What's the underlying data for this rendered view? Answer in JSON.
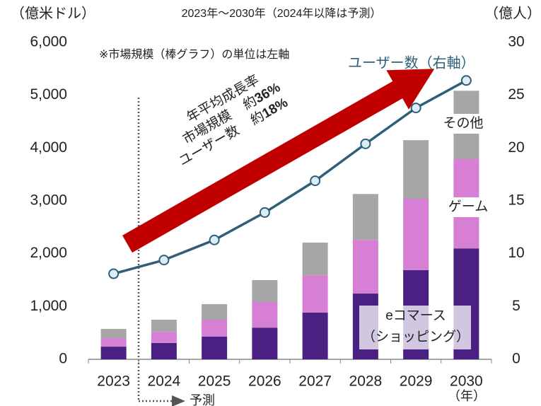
{
  "chart_data": {
    "type": "bar",
    "subtitle": "2023年～2030年（2024年以降は予測）",
    "ylabel": "（億米ドル）",
    "y2label": "（億人）",
    "note": "※市場規模（棒グラフ）の単位は左軸",
    "line_label": "ユーザー数（右軸）",
    "cagr_title": "年平均成長率",
    "cagr": [
      {
        "name": "市場規模",
        "approx": "約",
        "label": "36%"
      },
      {
        "name": "ユーザー数",
        "approx": "約",
        "label": "18%"
      }
    ],
    "forecast_label": "予測",
    "xunit": "（年）",
    "categories": [
      "2023",
      "2024",
      "2025",
      "2026",
      "2027",
      "2028",
      "2029",
      "2030"
    ],
    "series": [
      {
        "name": "eコマース（ショッピング）",
        "color": "#4a2183",
        "values": [
          240,
          310,
          430,
          600,
          885,
          1245,
          1690,
          2100
        ]
      },
      {
        "name": "ゲーム",
        "color": "#d67fd4",
        "values": [
          160,
          210,
          320,
          485,
          705,
          1015,
          1350,
          1690
        ]
      },
      {
        "name": "その他",
        "color": "#a6a6a6",
        "values": [
          175,
          230,
          295,
          415,
          620,
          870,
          1110,
          1295
        ]
      },
      {
        "type": "line",
        "axis": "y2",
        "color": "#2f5e78",
        "values": [
          8.1,
          9.4,
          11.3,
          13.9,
          16.9,
          20.4,
          23.8,
          26.4
        ]
      }
    ],
    "ylim": [
      0,
      6000
    ],
    "yticks": [
      0,
      {
        "value": 1000,
        "label": "1,000"
      },
      {
        "value": 2000,
        "label": "2,000"
      },
      {
        "value": 3000,
        "label": "3,000"
      },
      {
        "value": 4000,
        "label": "4,000"
      },
      {
        "value": 5000,
        "label": "5,000"
      },
      {
        "value": 6000,
        "label": "6,000"
      }
    ],
    "y2lim": [
      0,
      30
    ],
    "y2ticks": [
      0,
      5,
      10,
      15,
      20,
      25,
      30
    ]
  }
}
